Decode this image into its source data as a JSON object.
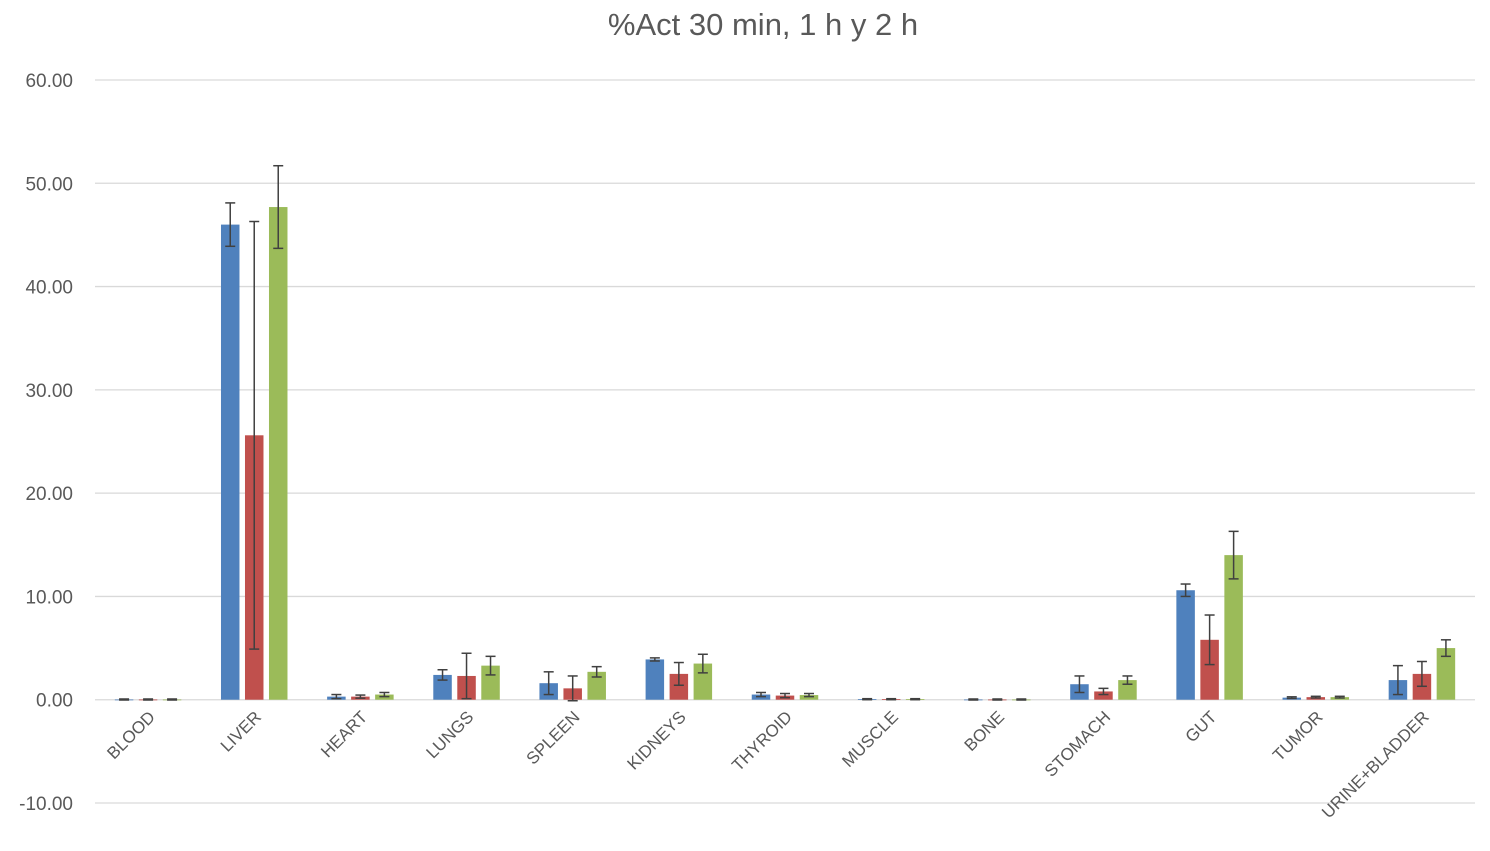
{
  "chart_data": {
    "type": "bar",
    "title": "%Act 30 min, 1 h y 2 h",
    "xlabel": "",
    "ylabel": "",
    "ylim": [
      -10,
      60
    ],
    "yticks": [
      "-10.00",
      "0.00",
      "10.00",
      "20.00",
      "30.00",
      "40.00",
      "50.00",
      "60.00"
    ],
    "grid": true,
    "legend": "none",
    "categories": [
      "BLOOD",
      "LIVER",
      "HEART",
      "LUNGS",
      "SPLEEN",
      "KIDNEYS",
      "THYROID",
      "MUSCLE",
      "BONE",
      "STOMACH",
      "GUT",
      "TUMOR",
      "URINE+BLADDER"
    ],
    "series": [
      {
        "color": "#4f81bd",
        "values": [
          0.02,
          46.0,
          0.3,
          2.4,
          1.6,
          3.9,
          0.5,
          0.05,
          0.02,
          1.5,
          10.6,
          0.2,
          1.9
        ],
        "errors": [
          0.05,
          2.1,
          0.2,
          0.5,
          1.1,
          0.15,
          0.2,
          0.05,
          0.05,
          0.8,
          0.6,
          0.08,
          1.4
        ]
      },
      {
        "color": "#c0504d",
        "values": [
          0.02,
          25.6,
          0.3,
          2.3,
          1.1,
          2.5,
          0.4,
          0.05,
          0.02,
          0.8,
          5.8,
          0.25,
          2.5
        ],
        "errors": [
          0.05,
          20.7,
          0.15,
          2.2,
          1.2,
          1.1,
          0.2,
          0.05,
          0.05,
          0.3,
          2.4,
          0.08,
          1.2
        ]
      },
      {
        "color": "#9bbb59",
        "values": [
          0.02,
          47.7,
          0.5,
          3.3,
          2.7,
          3.5,
          0.45,
          0.05,
          0.02,
          1.9,
          14.0,
          0.25,
          5.0
        ],
        "errors": [
          0.05,
          4.0,
          0.2,
          0.9,
          0.5,
          0.9,
          0.15,
          0.05,
          0.05,
          0.4,
          2.3,
          0.08,
          0.8
        ]
      }
    ]
  }
}
